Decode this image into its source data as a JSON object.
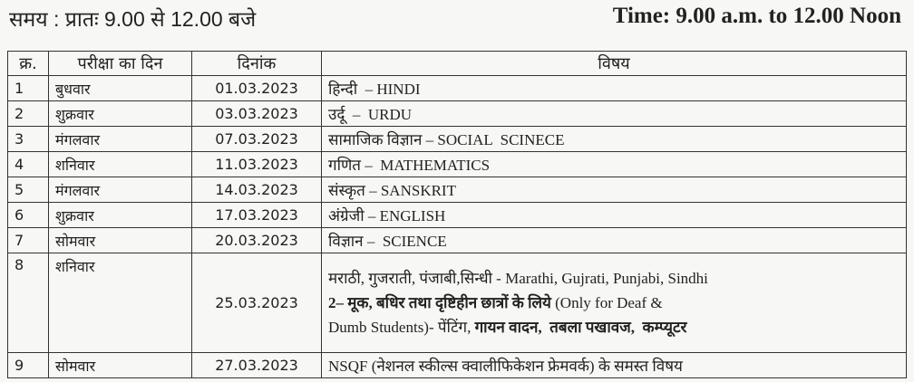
{
  "header": {
    "time_hindi": "समय : प्रातः 9.00 से 12.00 बजे",
    "time_english": "Time: 9.00 a.m. to 12.00 Noon"
  },
  "table": {
    "columns": [
      "क्र.",
      "परीक्षा का दिन",
      "दिनांक",
      "विषय"
    ],
    "rows": [
      {
        "no": "1",
        "day": "बुधवार",
        "date": "01.03.2023",
        "subject": "हिन्दी  – HINDI"
      },
      {
        "no": "2",
        "day": "शुक्रवार",
        "date": "03.03.2023",
        "subject": "उर्दू  –  URDU"
      },
      {
        "no": "3",
        "day": "मंगलवार",
        "date": "07.03.2023",
        "subject": "सामाजिक विज्ञान – SOCIAL  SCINECE"
      },
      {
        "no": "4",
        "day": "शनिवार",
        "date": "11.03.2023",
        "subject": "गणित –  MATHEMATICS"
      },
      {
        "no": "5",
        "day": "मंगलवार",
        "date": "14.03.2023",
        "subject": "संस्कृत – SANSKRIT"
      },
      {
        "no": "6",
        "day": "शुक्रवार",
        "date": "17.03.2023",
        "subject": "अंग्रेजी – ENGLISH"
      },
      {
        "no": "7",
        "day": "सोमवार",
        "date": "20.03.2023",
        "subject": "विज्ञान –  SCIENCE"
      }
    ],
    "row8": {
      "no": "8",
      "day": "शनिवार",
      "date": "25.03.2023",
      "line1": "मराठी, गुजराती, पंजाबी,सिन्धी - Marathi, Gujrati, Punjabi, Sindhi",
      "line2_bold": "2– मूक, बधिर तथा दृष्टिहीन छात्रों के लिये",
      "line2_rest": " (Only for Deaf &",
      "line3_start": "Dumb Students)- पेंटिंग, ",
      "line3_bold": "गायन वादन,  तबला पखावज,  कम्प्यूटर"
    },
    "row9": {
      "no": "9",
      "day": "सोमवार",
      "date": "27.03.2023",
      "subject": "NSQF (नेशनल स्कील्स क्वालीफिकेशन फ्रेमवर्क) के समस्त विषय"
    }
  }
}
